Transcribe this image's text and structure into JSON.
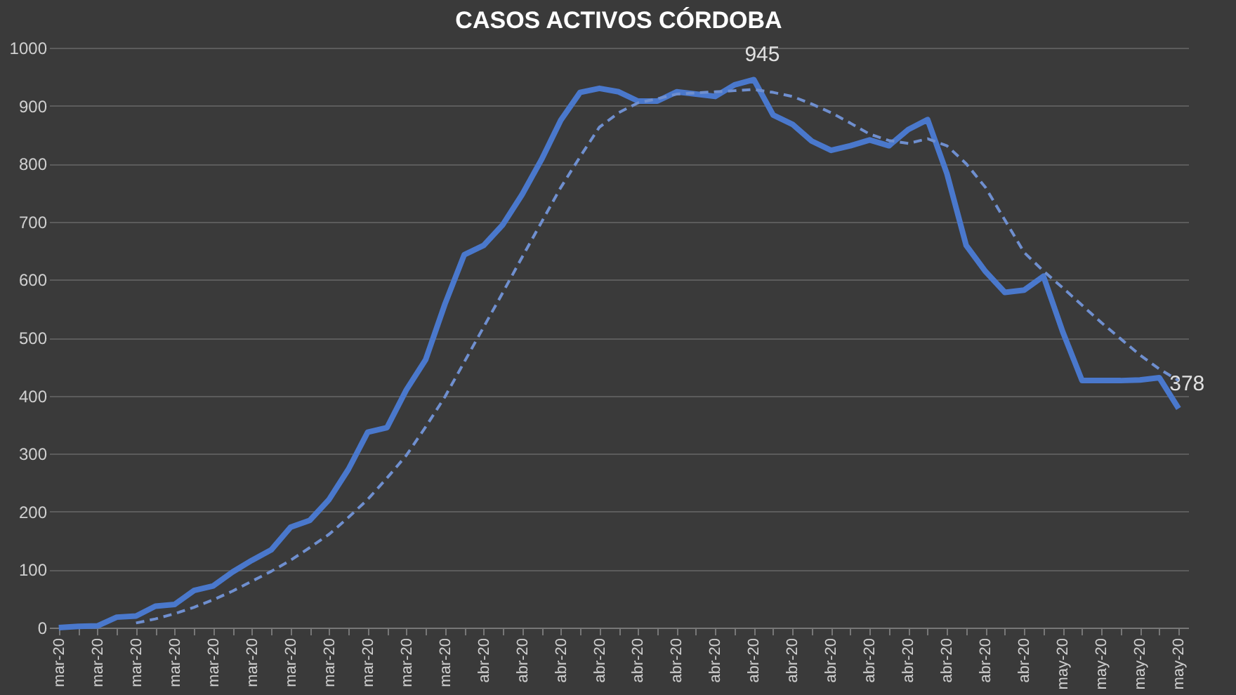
{
  "chart_data": {
    "type": "line",
    "title": "CASOS ACTIVOS CÓRDOBA",
    "categories": [
      "mar-20",
      null,
      "mar-20",
      null,
      "mar-20",
      null,
      "mar-20",
      null,
      "mar-20",
      null,
      "mar-20",
      null,
      "mar-20",
      null,
      "mar-20",
      null,
      "mar-20",
      null,
      "mar-20",
      null,
      "mar-20",
      null,
      "abr-20",
      null,
      "abr-20",
      null,
      "abr-20",
      null,
      "abr-20",
      null,
      "abr-20",
      null,
      "abr-20",
      null,
      "abr-20",
      null,
      "abr-20",
      null,
      "abr-20",
      null,
      "abr-20",
      null,
      "abr-20",
      null,
      "abr-20",
      null,
      "abr-20",
      null,
      "abr-20",
      null,
      "abr-20",
      null,
      "may-20",
      null,
      "may-20",
      null,
      "may-20",
      null,
      "may-20"
    ],
    "series": [
      {
        "color": "#4a78cc",
        "line_style": "solid",
        "values": [
          0,
          2,
          3,
          18,
          20,
          37,
          40,
          64,
          72,
          96,
          116,
          134,
          173,
          185,
          221,
          273,
          337,
          345,
          410,
          462,
          558,
          643,
          659,
          695,
          747,
          807,
          875,
          923,
          930,
          924,
          908,
          908,
          924,
          920,
          916,
          936,
          945,
          884,
          868,
          839,
          823,
          831,
          841,
          831,
          859,
          876,
          783,
          659,
          614,
          578,
          582,
          606,
          510,
          426,
          426,
          426,
          427,
          431,
          378
        ],
        "value_labels": [
          null,
          null,
          null,
          null,
          null,
          null,
          null,
          null,
          null,
          null,
          null,
          null,
          null,
          null,
          null,
          null,
          null,
          null,
          null,
          null,
          null,
          null,
          null,
          null,
          null,
          null,
          null,
          null,
          null,
          null,
          null,
          null,
          null,
          null,
          null,
          null,
          "945",
          null,
          null,
          null,
          null,
          null,
          null,
          null,
          null,
          null,
          null,
          null,
          null,
          null,
          null,
          null,
          null,
          null,
          null,
          null,
          null,
          null,
          "378"
        ]
      },
      {
        "color": "#6f8fcf",
        "line_style": "dashed",
        "values": [
          null,
          null,
          null,
          null,
          8,
          15,
          24,
          35,
          48,
          63,
          80,
          97,
          116,
          138,
          161,
          190,
          221,
          258,
          297,
          346,
          398,
          458,
          518,
          578,
          639,
          699,
          759,
          812,
          863,
          888,
          905,
          912,
          920,
          922,
          924,
          926,
          928,
          923,
          916,
          903,
          888,
          870,
          851,
          840,
          835,
          843,
          831,
          800,
          759,
          703,
          647,
          615,
          586,
          556,
          526,
          498,
          470,
          446,
          426
        ]
      }
    ],
    "ylim": [
      0,
      1000
    ],
    "yticks": [
      0,
      100,
      200,
      300,
      400,
      500,
      600,
      700,
      800,
      900,
      1000
    ],
    "grid": "y"
  }
}
